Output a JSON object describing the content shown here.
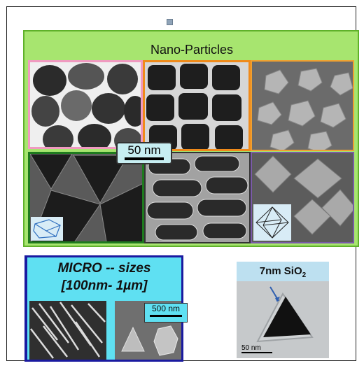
{
  "title": "Nano-Particles",
  "scale_bar_main": "50 nm",
  "micro": {
    "line1": "MICRO -- sizes",
    "line2": "[100nm- 1µm]",
    "scale_bar": "500 nm"
  },
  "sio2": {
    "label_main": "7nm  SiO",
    "label_sub": "2",
    "scale_bar": "50 nm"
  },
  "colors": {
    "panel": "#a7e56f",
    "micro_border": "#1a1aa0",
    "micro_fill": "#5fe0f2",
    "scale_box": "#c7eef2"
  }
}
